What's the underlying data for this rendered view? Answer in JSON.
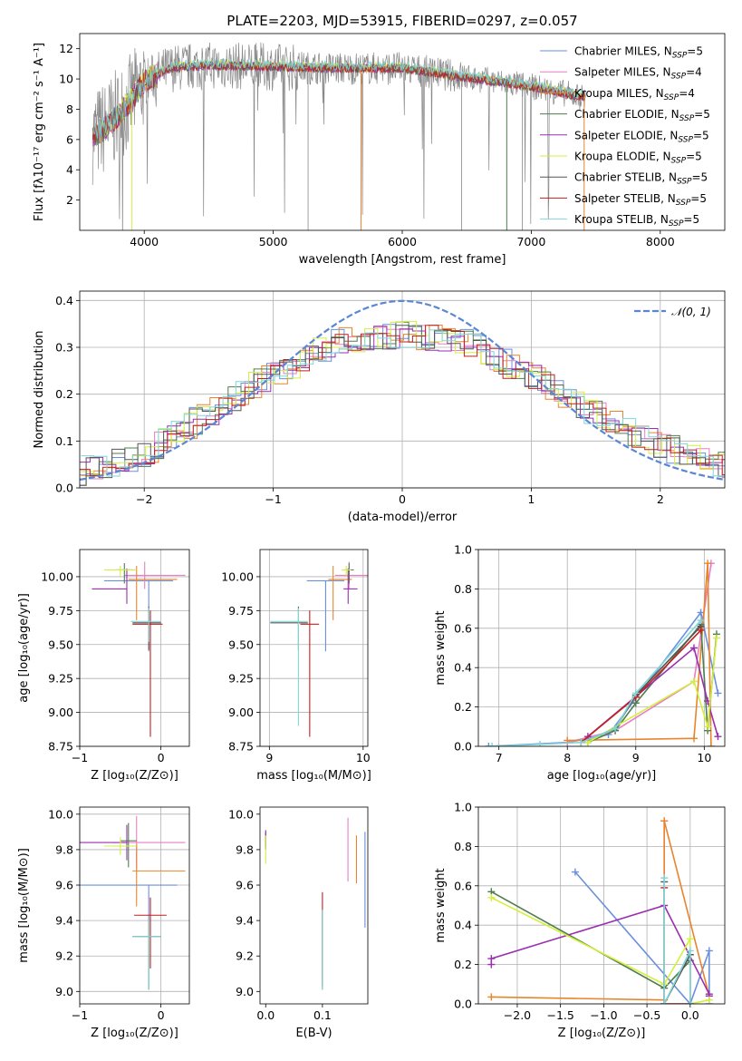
{
  "title": "PLATE=2203, MJD=53915, FIBERID=0297, z=0.057",
  "colors": {
    "Chabrier MILES": "#6a8fde",
    "Salpeter MILES": "#e77fc3",
    "Kroupa MILES": "#e8842c",
    "Chabrier ELODIE": "#4f7d4f",
    "Salpeter ELODIE": "#9a2fb0",
    "Kroupa ELODIE": "#d4ef3c",
    "Chabrier STELIB": "#555555",
    "Salpeter STELIB": "#c21f1f",
    "Kroupa STELIB": "#7fd6d8",
    "gaussian": "#5b86d6",
    "data": "#888888"
  },
  "chart_data": [
    {
      "id": "spectrum",
      "type": "line",
      "title": "PLATE=2203, MJD=53915, FIBERID=0297, z=0.057",
      "xlabel": "wavelength [Angstrom, rest frame]",
      "ylabel": "Flux [fλ10⁻¹⁷ erg cm⁻² s⁻¹ A⁻¹]",
      "xlim": [
        3500,
        8500
      ],
      "ylim": [
        0,
        13
      ],
      "xticks": [
        4000,
        5000,
        6000,
        7000,
        8000
      ],
      "yticks": [
        2,
        4,
        6,
        8,
        10,
        12
      ],
      "legend": [
        {
          "label": "Chabrier MILES",
          "sub": "SSP",
          "n": "5"
        },
        {
          "label": "Salpeter MILES",
          "sub": "SSP",
          "n": "4"
        },
        {
          "label": "Kroupa MILES",
          "sub": "SSP",
          "n": "4"
        },
        {
          "label": "Chabrier ELODIE",
          "sub": "SSP",
          "n": "5"
        },
        {
          "label": "Salpeter ELODIE",
          "sub": "SSP",
          "n": "5"
        },
        {
          "label": "Kroupa ELODIE",
          "sub": "SSP",
          "n": "5"
        },
        {
          "label": "Chabrier STELIB",
          "sub": "SSP",
          "n": "5"
        },
        {
          "label": "Salpeter STELIB",
          "sub": "SSP",
          "n": "5"
        },
        {
          "label": "Kroupa STELIB",
          "sub": "SSP",
          "n": "5"
        }
      ],
      "legend_placement": "top-right",
      "data_profile": {
        "x": [
          3600,
          3700,
          3800,
          3900,
          4000,
          4200,
          4500,
          5000,
          5500,
          6000,
          6500,
          7000,
          7400
        ],
        "y": [
          6.2,
          6.8,
          7.6,
          8.6,
          9.8,
          10.7,
          10.9,
          10.8,
          10.7,
          10.7,
          10.1,
          9.5,
          8.8
        ]
      }
    },
    {
      "id": "residuals",
      "type": "line",
      "xlabel": "(data-model)/error",
      "ylabel": "Normed distribution",
      "xlim": [
        -2.5,
        2.5
      ],
      "ylim": [
        0,
        0.42
      ],
      "xticks": [
        -2,
        -1,
        0,
        1,
        2
      ],
      "yticks": [
        0.0,
        0.1,
        0.2,
        0.3,
        0.4
      ],
      "grid": true,
      "legend": [
        {
          "label": "𝒩(0, 1)"
        }
      ],
      "legend_placement": "top-right",
      "hist_profile": {
        "x": [
          -2.5,
          -2.0,
          -1.5,
          -1.0,
          -0.5,
          0.0,
          0.5,
          1.0,
          1.5,
          2.0,
          2.5
        ],
        "y": [
          0.035,
          0.07,
          0.16,
          0.24,
          0.31,
          0.33,
          0.31,
          0.24,
          0.16,
          0.09,
          0.05
        ]
      }
    },
    {
      "id": "age_vs_Z",
      "type": "scatter",
      "xlabel": "Z [log₁₀(Z/Z⊙)]",
      "ylabel": "age  [log₁₀(age/yr)]",
      "xlim": [
        -1.0,
        0.35
      ],
      "ylim": [
        8.75,
        10.2
      ],
      "xticks": [
        -1,
        0
      ],
      "yticks": [
        8.75,
        9.0,
        9.25,
        9.5,
        9.75,
        10.0
      ],
      "grid": true,
      "points": [
        {
          "model": "Chabrier MILES",
          "x": -0.15,
          "xerr": [
            0.55,
            0.3
          ],
          "y": 9.97,
          "yerr": [
            0.52,
            0.0
          ]
        },
        {
          "model": "Salpeter MILES",
          "x": -0.2,
          "xerr": [
            0.25,
            0.5
          ],
          "y": 10.01,
          "yerr": [
            0.1,
            0.1
          ]
        },
        {
          "model": "Kroupa MILES",
          "x": -0.3,
          "xerr": [
            0.1,
            0.5
          ],
          "y": 9.98,
          "yerr": [
            0.3,
            0.1
          ]
        },
        {
          "model": "Chabrier ELODIE",
          "x": -0.45,
          "xerr": [
            0.1,
            0.1
          ],
          "y": 10.05,
          "yerr": [
            0.1,
            0.05
          ]
        },
        {
          "model": "Salpeter ELODIE",
          "x": -0.42,
          "xerr": [
            0.43,
            0.0
          ],
          "y": 9.91,
          "yerr": [
            0.11,
            0.15
          ]
        },
        {
          "model": "Kroupa ELODIE",
          "x": -0.5,
          "xerr": [
            0.2,
            0.2
          ],
          "y": 10.05,
          "yerr": [
            0.05,
            0.03
          ]
        },
        {
          "model": "Chabrier STELIB",
          "x": -0.15,
          "xerr": [
            0.2,
            0.15
          ],
          "y": 9.66,
          "yerr": [
            0.2,
            0.12
          ]
        },
        {
          "model": "Salpeter STELIB",
          "x": -0.13,
          "xerr": [
            0.22,
            0.15
          ],
          "y": 9.65,
          "yerr": [
            0.83,
            0.1
          ]
        },
        {
          "model": "Kroupa STELIB",
          "x": -0.15,
          "xerr": [
            0.22,
            0.15
          ],
          "y": 9.67,
          "yerr": [
            0.15,
            0.1
          ]
        }
      ]
    },
    {
      "id": "age_vs_mass",
      "type": "scatter",
      "xlabel": "mass [log₁₀(M/M⊙)]",
      "ylabel": "",
      "xlim": [
        8.9,
        10.05
      ],
      "ylim": [
        8.75,
        10.2
      ],
      "xticks": [
        9,
        10
      ],
      "yticks": [
        8.75,
        9.0,
        9.25,
        9.5,
        9.75,
        10.0
      ],
      "grid": true,
      "points": [
        {
          "model": "Chabrier MILES",
          "x": 9.6,
          "xerr": [
            0.2,
            0.2
          ],
          "y": 9.97,
          "yerr": [
            0.52,
            0.0
          ]
        },
        {
          "model": "Salpeter MILES",
          "x": 9.85,
          "xerr": [
            0.15,
            0.2
          ],
          "y": 10.01,
          "yerr": [
            0.1,
            0.1
          ]
        },
        {
          "model": "Kroupa MILES",
          "x": 9.68,
          "xerr": [
            0.05,
            0.2
          ],
          "y": 9.98,
          "yerr": [
            0.3,
            0.1
          ]
        },
        {
          "model": "Chabrier ELODIE",
          "x": 9.85,
          "xerr": [
            0.05,
            0.05
          ],
          "y": 10.05,
          "yerr": [
            0.1,
            0.05
          ]
        },
        {
          "model": "Salpeter ELODIE",
          "x": 9.84,
          "xerr": [
            0.05,
            0.1
          ],
          "y": 9.91,
          "yerr": [
            0.11,
            0.15
          ]
        },
        {
          "model": "Kroupa ELODIE",
          "x": 9.82,
          "xerr": [
            0.05,
            0.05
          ],
          "y": 10.05,
          "yerr": [
            0.05,
            0.03
          ]
        },
        {
          "model": "Chabrier STELIB",
          "x": 9.31,
          "xerr": [
            0.3,
            0.1
          ],
          "y": 9.66,
          "yerr": [
            0.2,
            0.12
          ]
        },
        {
          "model": "Salpeter STELIB",
          "x": 9.43,
          "xerr": [
            0.1,
            0.1
          ],
          "y": 9.65,
          "yerr": [
            0.83,
            0.1
          ]
        },
        {
          "model": "Kroupa STELIB",
          "x": 9.31,
          "xerr": [
            0.3,
            0.1
          ],
          "y": 9.67,
          "yerr": [
            0.77,
            0.1
          ]
        }
      ]
    },
    {
      "id": "weight_vs_age",
      "type": "line",
      "xlabel": "age  [log₁₀(age/yr)]",
      "ylabel": "mass weight",
      "xlim": [
        6.7,
        10.3
      ],
      "ylim": [
        0,
        1.0
      ],
      "xticks": [
        7,
        8,
        9,
        10
      ],
      "yticks": [
        0.0,
        0.2,
        0.4,
        0.6,
        0.8,
        1.0
      ],
      "grid": true,
      "series": [
        {
          "model": "Chabrier MILES",
          "x": [
            6.85,
            8.0,
            8.6,
            9.95,
            10.2
          ],
          "y": [
            0.0,
            0.02,
            0.06,
            0.68,
            0.27
          ]
        },
        {
          "model": "Salpeter MILES",
          "x": [
            8.0,
            8.7,
            9.85,
            10.1
          ],
          "y": [
            0.02,
            0.08,
            0.33,
            0.93
          ]
        },
        {
          "model": "Kroupa MILES",
          "x": [
            8.0,
            9.85,
            10.05,
            10.1
          ],
          "y": [
            0.03,
            0.04,
            0.93,
            0.0
          ]
        },
        {
          "model": "Chabrier ELODIE",
          "x": [
            8.3,
            8.7,
            9.0,
            9.95,
            10.05,
            10.18
          ],
          "y": [
            0.02,
            0.08,
            0.22,
            0.62,
            0.08,
            0.57
          ]
        },
        {
          "model": "Salpeter ELODIE",
          "x": [
            8.3,
            9.85,
            10.05,
            10.2
          ],
          "y": [
            0.05,
            0.5,
            0.23,
            0.05
          ]
        },
        {
          "model": "Kroupa ELODIE",
          "x": [
            8.3,
            9.85,
            10.05,
            10.18
          ],
          "y": [
            0.02,
            0.33,
            0.1,
            0.55
          ]
        },
        {
          "model": "Chabrier STELIB",
          "x": [
            8.2,
            8.7,
            9.0,
            9.95
          ],
          "y": [
            0.02,
            0.09,
            0.26,
            0.61
          ]
        },
        {
          "model": "Salpeter STELIB",
          "x": [
            8.2,
            9.0,
            9.95
          ],
          "y": [
            0.02,
            0.25,
            0.59
          ]
        },
        {
          "model": "Kroupa STELIB",
          "x": [
            6.9,
            7.6,
            8.2,
            8.7,
            9.0,
            9.95
          ],
          "y": [
            0.0,
            0.01,
            0.02,
            0.09,
            0.27,
            0.64
          ]
        }
      ]
    },
    {
      "id": "mass_vs_Z",
      "type": "scatter",
      "xlabel": "Z [log₁₀(Z/Z⊙)]",
      "ylabel": "mass [log₁₀(M/M⊙)]",
      "xlim": [
        -1.0,
        0.35
      ],
      "ylim": [
        8.93,
        10.04
      ],
      "xticks": [
        -1,
        0
      ],
      "yticks": [
        9.0,
        9.2,
        9.4,
        9.6,
        9.8,
        10.0
      ],
      "grid": true,
      "points": [
        {
          "model": "Chabrier MILES",
          "x": -0.15,
          "xerr": [
            0.85,
            0.35
          ],
          "y": 9.6,
          "yerr": [
            0.2,
            0.0
          ]
        },
        {
          "model": "Salpeter MILES",
          "x": -0.3,
          "xerr": [
            0.3,
            0.6
          ],
          "y": 9.84,
          "yerr": [
            0.15,
            0.15
          ]
        },
        {
          "model": "Kroupa MILES",
          "x": -0.3,
          "xerr": [
            0.05,
            0.6
          ],
          "y": 9.68,
          "yerr": [
            0.2,
            0.15
          ]
        },
        {
          "model": "Chabrier ELODIE",
          "x": -0.4,
          "xerr": [
            0.1,
            0.1
          ],
          "y": 9.85,
          "yerr": [
            0.15,
            0.1
          ]
        },
        {
          "model": "Salpeter ELODIE",
          "x": -0.42,
          "xerr": [
            0.58,
            0.0
          ],
          "y": 9.84,
          "yerr": [
            0.1,
            0.1
          ]
        },
        {
          "model": "Kroupa ELODIE",
          "x": -0.5,
          "xerr": [
            0.2,
            0.2
          ],
          "y": 9.82,
          "yerr": [
            0.05,
            0.05
          ]
        },
        {
          "model": "Chabrier STELIB",
          "x": -0.15,
          "xerr": [
            0.2,
            0.15
          ],
          "y": 9.31,
          "yerr": [
            0.3,
            0.1
          ]
        },
        {
          "model": "Salpeter STELIB",
          "x": -0.13,
          "xerr": [
            0.2,
            0.2
          ],
          "y": 9.43,
          "yerr": [
            0.3,
            0.1
          ]
        },
        {
          "model": "Kroupa STELIB",
          "x": -0.15,
          "xerr": [
            0.2,
            0.15
          ],
          "y": 9.31,
          "yerr": [
            0.3,
            0.1
          ]
        }
      ]
    },
    {
      "id": "mass_vs_ebv",
      "type": "scatter",
      "xlabel": "E(B-V)",
      "ylabel": "",
      "xlim": [
        -0.01,
        0.18
      ],
      "ylim": [
        8.93,
        10.04
      ],
      "xticks": [
        0.0,
        0.1
      ],
      "yticks": [
        9.0,
        9.2,
        9.4,
        9.6,
        9.8,
        10.0
      ],
      "grid": false,
      "points": [
        {
          "model": "Chabrier MILES",
          "x": 0.175,
          "y": 9.6,
          "yerr": [
            0.24,
            0.3
          ]
        },
        {
          "model": "Salpeter MILES",
          "x": 0.145,
          "y": 9.8,
          "yerr": [
            0.18,
            0.18
          ]
        },
        {
          "model": "Kroupa MILES",
          "x": 0.16,
          "y": 9.68,
          "yerr": [
            0.07,
            0.2
          ]
        },
        {
          "model": "Chabrier ELODIE",
          "x": 0.0,
          "y": 9.85,
          "yerr": [
            0.05,
            0.05
          ]
        },
        {
          "model": "Salpeter ELODIE",
          "x": 0.0,
          "y": 9.86,
          "yerr": [
            0.05,
            0.05
          ]
        },
        {
          "model": "Kroupa ELODIE",
          "x": 0.0,
          "y": 9.8,
          "yerr": [
            0.08,
            0.08
          ]
        },
        {
          "model": "Chabrier STELIB",
          "x": 0.1,
          "y": 9.31,
          "yerr": [
            0.3,
            0.15
          ]
        },
        {
          "model": "Salpeter STELIB",
          "x": 0.1,
          "y": 9.43,
          "yerr": [
            0.4,
            0.13
          ]
        },
        {
          "model": "Kroupa STELIB",
          "x": 0.1,
          "y": 9.31,
          "yerr": [
            0.3,
            0.15
          ]
        }
      ]
    },
    {
      "id": "weight_vs_Z",
      "type": "line",
      "xlabel": "Z [log₁₀(Z/Z⊙)]",
      "ylabel": "mass weight",
      "xlim": [
        -2.45,
        0.4
      ],
      "ylim": [
        0,
        1.0
      ],
      "xticks": [
        -2.0,
        -1.5,
        -1.0,
        -0.5,
        0.0
      ],
      "yticks": [
        0.0,
        0.2,
        0.4,
        0.6,
        0.8,
        1.0
      ],
      "grid": true,
      "series": [
        {
          "model": "Chabrier MILES",
          "x": [
            -1.33,
            0.0,
            0.22,
            0.22
          ],
          "y": [
            0.67,
            0.0,
            0.27,
            0.0
          ]
        },
        {
          "model": "Salpeter MILES",
          "x": [
            -0.3,
            -0.3
          ],
          "y": [
            0.93,
            0.0
          ]
        },
        {
          "model": "Kroupa MILES",
          "x": [
            -2.3,
            -0.3,
            -0.3,
            0.22
          ],
          "y": [
            0.035,
            0.02,
            0.93,
            0.04
          ]
        },
        {
          "model": "Chabrier ELODIE",
          "x": [
            -2.3,
            -0.3,
            0.0,
            0.0
          ],
          "y": [
            0.57,
            0.08,
            0.22,
            0.0
          ]
        },
        {
          "model": "Salpeter ELODIE",
          "x": [
            -2.3,
            -2.3,
            -0.3,
            0.22,
            0.22
          ],
          "y": [
            0.2,
            0.23,
            0.5,
            0.05,
            0.04
          ]
        },
        {
          "model": "Kroupa ELODIE",
          "x": [
            -2.3,
            -0.3,
            0.0,
            0.0,
            0.22
          ],
          "y": [
            0.54,
            0.1,
            0.33,
            0.0,
            0.02
          ]
        },
        {
          "model": "Chabrier STELIB",
          "x": [
            -0.3,
            -0.3,
            0.0,
            0.0
          ],
          "y": [
            0.62,
            0.0,
            0.25,
            0.0
          ]
        },
        {
          "model": "Salpeter STELIB",
          "x": [
            -0.3,
            -0.3,
            0.0
          ],
          "y": [
            0.59,
            0.0,
            0.0
          ]
        },
        {
          "model": "Kroupa STELIB",
          "x": [
            -0.3,
            -0.3,
            0.0,
            0.0
          ],
          "y": [
            0.64,
            0.0,
            0.27,
            0.0
          ]
        }
      ]
    }
  ]
}
